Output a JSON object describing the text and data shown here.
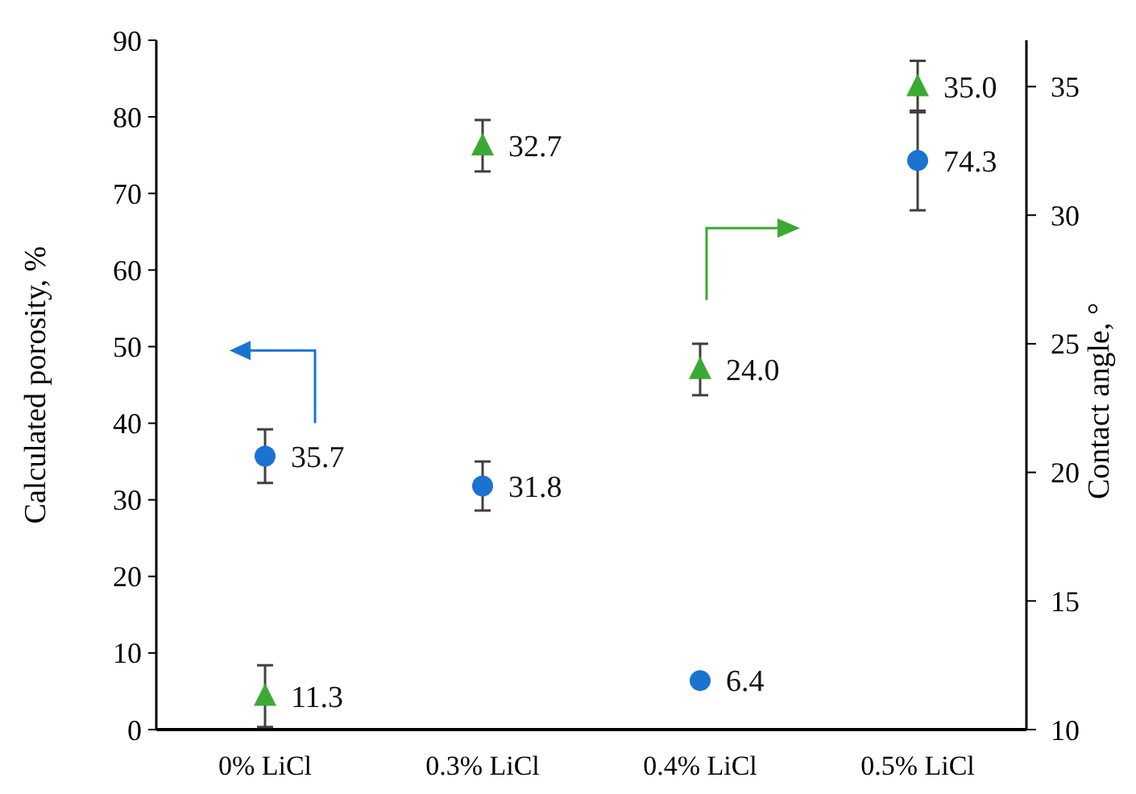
{
  "chart_data": {
    "type": "scatter",
    "categories": [
      "0% LiCl",
      "0.3% LiCl",
      "0.4% LiCl",
      "0.5% LiCl"
    ],
    "ylabel": "Calculated porosity, %",
    "y2label": "Contact angle, °",
    "ylim": [
      0,
      90
    ],
    "yticks": [
      0,
      10,
      20,
      30,
      40,
      50,
      60,
      70,
      80,
      90
    ],
    "y2lim": [
      10,
      36.8
    ],
    "y2ticks": [
      10,
      15,
      20,
      25,
      30,
      35
    ],
    "series": [
      {
        "color": "#1a73d0",
        "marker": "circle",
        "values": [
          35.7,
          31.8,
          6.4,
          74.3
        ],
        "errors": [
          3.5,
          3.2,
          null,
          6.5
        ],
        "value_labels": [
          "35.7",
          "31.8",
          "6.4",
          "74.3"
        ]
      },
      {
        "color": "#3aaa35",
        "marker": "triangle",
        "axis": "y2",
        "values": [
          11.3,
          32.7,
          24.0,
          35.0
        ],
        "errors": [
          1.2,
          1.0,
          1.0,
          1.0
        ],
        "value_labels": [
          "11.3",
          "32.7",
          "24.0",
          "35.0"
        ]
      }
    ],
    "grid": false
  }
}
